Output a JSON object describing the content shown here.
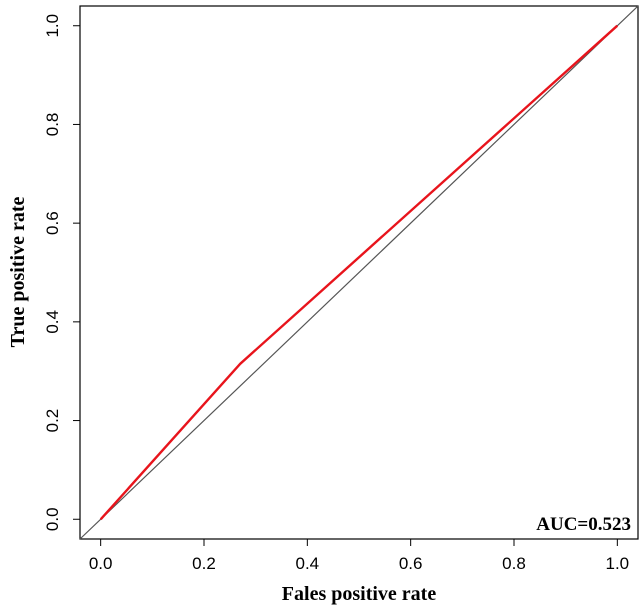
{
  "chart_data": {
    "type": "line",
    "title": "",
    "xlabel": "Fales positive rate",
    "ylabel": "True positive rate",
    "xlim": [
      -0.04,
      1.04
    ],
    "ylim": [
      -0.04,
      1.04
    ],
    "x_ticks": [
      "0.0",
      "0.2",
      "0.4",
      "0.6",
      "0.8",
      "1.0"
    ],
    "y_ticks": [
      "0.0",
      "0.2",
      "0.4",
      "0.6",
      "0.8",
      "1.0"
    ],
    "grid": false,
    "legend": "none",
    "series": [
      {
        "color": "#e8141c",
        "x": [
          0.0,
          0.27,
          1.0
        ],
        "y": [
          0.0,
          0.315,
          1.0
        ]
      },
      {
        "color": "#555555",
        "x": [
          -0.04,
          1.04
        ],
        "y": [
          -0.04,
          1.04
        ]
      }
    ],
    "annotations": [
      {
        "text": "AUC=0.523",
        "position": "bottom-right"
      }
    ]
  }
}
